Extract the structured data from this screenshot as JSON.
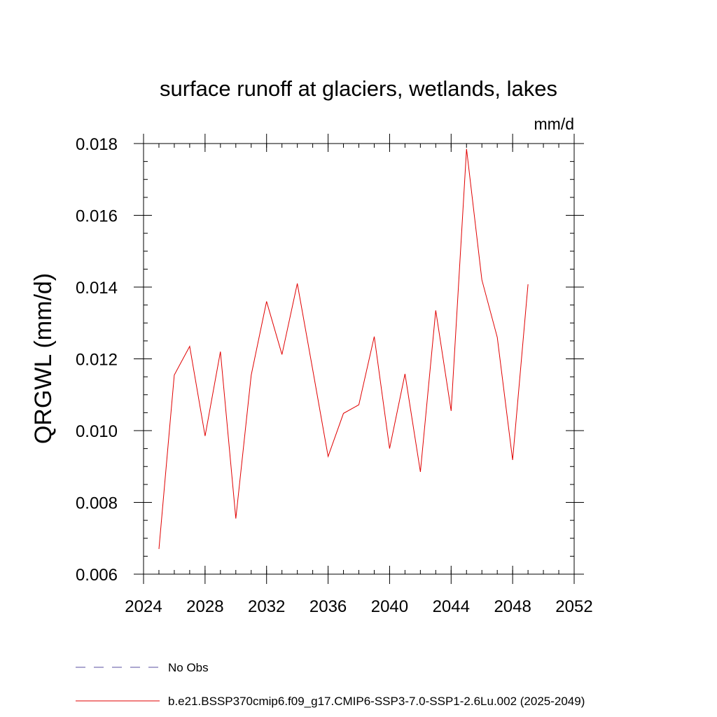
{
  "chart_data": {
    "type": "line",
    "title": "surface runoff at glaciers, wetlands, lakes",
    "units": "mm/d",
    "xlabel": "",
    "ylabel": "QRGWL  (mm/d)",
    "xlim": [
      2024,
      2052
    ],
    "ylim": [
      0.006,
      0.018
    ],
    "x_ticks": [
      2024,
      2028,
      2032,
      2036,
      2040,
      2044,
      2048,
      2052
    ],
    "x_tick_labels": [
      "2024",
      "2028",
      "2032",
      "2036",
      "2040",
      "2044",
      "2048",
      "2052"
    ],
    "x_minor_step": 1,
    "y_ticks": [
      0.006,
      0.008,
      0.01,
      0.012,
      0.014,
      0.016,
      0.018
    ],
    "y_tick_labels": [
      "0.006",
      "0.008",
      "0.010",
      "0.012",
      "0.014",
      "0.016",
      "0.018"
    ],
    "y_minor_step": 0.0005,
    "grid": false,
    "legend_position": "bottom",
    "legend": [
      {
        "label": "No Obs",
        "color": "#5a4fa0",
        "style": "dashed"
      },
      {
        "label": "b.e21.BSSP370cmip6.f09_g17.CMIP6-SSP3-7.0-SSP1-2.6Lu.002 (2025-2049)",
        "color": "#e00000",
        "style": "solid"
      }
    ],
    "series": [
      {
        "name": "b.e21.BSSP370cmip6.f09_g17.CMIP6-SSP3-7.0-SSP1-2.6Lu.002 (2025-2049)",
        "color": "#e00000",
        "x": [
          2025,
          2026,
          2027,
          2028,
          2029,
          2030,
          2031,
          2032,
          2033,
          2034,
          2035,
          2036,
          2037,
          2038,
          2039,
          2040,
          2041,
          2042,
          2043,
          2044,
          2045,
          2046,
          2047,
          2048,
          2049
        ],
        "values": [
          0.0067,
          0.01155,
          0.01235,
          0.00985,
          0.0122,
          0.00755,
          0.01155,
          0.0136,
          0.01212,
          0.0141,
          0.0117,
          0.00928,
          0.01048,
          0.01072,
          0.01262,
          0.0095,
          0.01158,
          0.00885,
          0.01335,
          0.01055,
          0.01785,
          0.0142,
          0.0126,
          0.00918,
          0.01408
        ]
      }
    ]
  }
}
